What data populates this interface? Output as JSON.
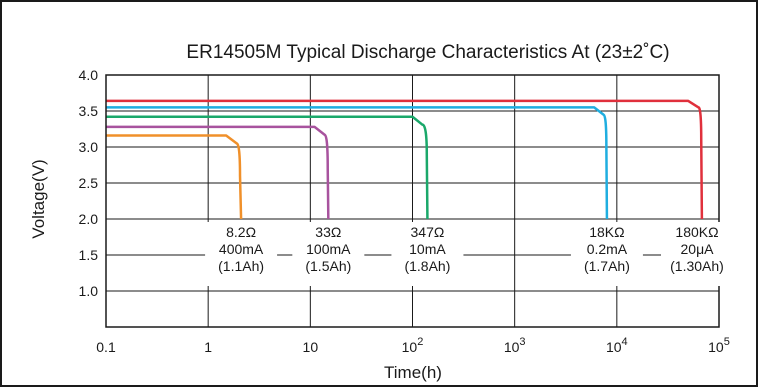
{
  "chart_data": {
    "type": "line",
    "title": "ER14505M Typical Discharge Characteristics At (23±2˚C)",
    "xlabel": "Time(h)",
    "ylabel": "Voltage(V)",
    "x_scale": "log",
    "xlim": [
      0.1,
      100000
    ],
    "ylim": [
      0.5,
      4.0
    ],
    "grid": true,
    "x_ticks": [
      {
        "value": 0.1,
        "base": "0.1",
        "exp": ""
      },
      {
        "value": 1,
        "base": "1",
        "exp": ""
      },
      {
        "value": 10,
        "base": "10",
        "exp": ""
      },
      {
        "value": 100,
        "base": "10",
        "exp": "2"
      },
      {
        "value": 1000,
        "base": "10",
        "exp": "3"
      },
      {
        "value": 10000,
        "base": "10",
        "exp": "4"
      },
      {
        "value": 100000,
        "base": "10",
        "exp": "5"
      }
    ],
    "y_ticks": [
      "4.0",
      "3.5",
      "3.0",
      "2.5",
      "2.0",
      "1.5",
      "1.0"
    ],
    "series": [
      {
        "color": "#f0902a",
        "x": [
          0.1,
          1.5,
          1.9,
          2.05,
          2.1
        ],
        "y": [
          3.16,
          3.16,
          3.05,
          2.6,
          2.0
        ],
        "label": [
          "8.2Ω",
          "400mA",
          "(1.1Ah)"
        ]
      },
      {
        "color": "#a8539e",
        "x": [
          0.1,
          11,
          13.8,
          14.8,
          15.0
        ],
        "y": [
          3.28,
          3.28,
          3.17,
          2.7,
          2.0
        ],
        "label": [
          "33Ω",
          "100mA",
          "(1.5Ah)"
        ]
      },
      {
        "color": "#1aa86a",
        "x": [
          0.1,
          100,
          125,
          138,
          140
        ],
        "y": [
          3.42,
          3.42,
          3.31,
          2.9,
          2.0
        ],
        "label": [
          "347Ω",
          "10mA",
          "(1.8Ah)"
        ]
      },
      {
        "color": "#1faee0",
        "x": [
          0.1,
          6000,
          7400,
          7900,
          8000
        ],
        "y": [
          3.55,
          3.55,
          3.45,
          3.0,
          2.0
        ],
        "label": [
          "18KΩ",
          "0.2mA",
          "(1.7Ah)"
        ]
      },
      {
        "color": "#e0303c",
        "x": [
          0.1,
          50000,
          63000,
          67000,
          68000
        ],
        "y": [
          3.64,
          3.64,
          3.55,
          3.1,
          2.0
        ],
        "label": [
          "180KΩ",
          "20μA",
          "(1.30Ah)"
        ]
      }
    ]
  }
}
